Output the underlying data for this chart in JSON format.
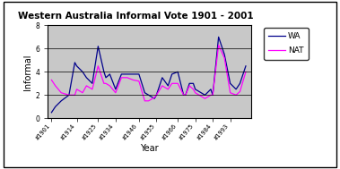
{
  "title": "Western Australia Informal Vote 1901 - 2001",
  "xlabel": "Year",
  "ylabel": "Informal",
  "ylim": [
    0,
    8
  ],
  "yticks": [
    0,
    2,
    4,
    6,
    8
  ],
  "wa_years": [
    1901,
    1903,
    1906,
    1910,
    1913,
    1914,
    1917,
    1919,
    1922,
    1925,
    1928,
    1929,
    1931,
    1934,
    1937,
    1940,
    1943,
    1946,
    1949,
    1951,
    1954,
    1955,
    1958,
    1961,
    1963,
    1966,
    1969,
    1970,
    1972,
    1974,
    1975,
    1977,
    1980,
    1983,
    1984,
    1987,
    1990,
    1993,
    1996,
    1998,
    2001
  ],
  "wa_values": [
    0.5,
    1.0,
    1.5,
    2.0,
    4.8,
    4.5,
    4.0,
    3.5,
    3.0,
    6.2,
    4.0,
    3.5,
    3.8,
    2.5,
    3.8,
    3.8,
    3.8,
    3.8,
    2.2,
    2.0,
    1.7,
    2.0,
    3.5,
    2.8,
    3.8,
    4.0,
    2.0,
    2.0,
    3.0,
    3.0,
    2.5,
    2.3,
    2.0,
    2.5,
    2.0,
    7.0,
    5.5,
    3.0,
    2.5,
    3.0,
    4.5
  ],
  "nat_years": [
    1901,
    1903,
    1906,
    1910,
    1913,
    1914,
    1917,
    1919,
    1922,
    1925,
    1928,
    1929,
    1931,
    1934,
    1937,
    1940,
    1943,
    1946,
    1949,
    1951,
    1954,
    1955,
    1958,
    1961,
    1963,
    1966,
    1969,
    1970,
    1972,
    1974,
    1975,
    1977,
    1980,
    1983,
    1984,
    1987,
    1990,
    1993,
    1996,
    1998,
    2001
  ],
  "nat_values": [
    3.3,
    2.8,
    2.2,
    2.0,
    2.0,
    2.5,
    2.2,
    2.8,
    2.5,
    4.5,
    3.0,
    3.0,
    2.8,
    2.2,
    3.5,
    3.5,
    3.3,
    3.2,
    1.5,
    1.5,
    1.8,
    2.0,
    2.8,
    2.5,
    3.0,
    3.0,
    2.0,
    2.0,
    2.8,
    2.5,
    2.2,
    2.0,
    1.7,
    2.0,
    2.0,
    6.3,
    5.2,
    2.2,
    2.0,
    2.3,
    4.0
  ],
  "wa_color": "#00008B",
  "nat_color": "#FF00FF",
  "plot_bg": "#C8C8C8",
  "xtick_labels": [
    "#1901",
    "#1914",
    "#1925",
    "#1934",
    "#1946",
    "#1955",
    "#1966",
    "#1975",
    "#1984",
    "#1993"
  ],
  "xtick_positions": [
    1901,
    1914,
    1925,
    1934,
    1946,
    1955,
    1966,
    1975,
    1984,
    1993
  ],
  "xlim": [
    1899,
    2004
  ]
}
